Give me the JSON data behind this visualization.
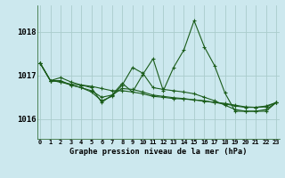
{
  "title": "Graphe pression niveau de la mer (hPa)",
  "bg_color": "#cce8ee",
  "grid_color": "#aacccc",
  "line_color": "#1a5c1a",
  "marker_color": "#1a5c1a",
  "x_labels": [
    "0",
    "1",
    "2",
    "3",
    "4",
    "5",
    "6",
    "7",
    "8",
    "9",
    "10",
    "11",
    "12",
    "13",
    "14",
    "15",
    "16",
    "17",
    "18",
    "19",
    "20",
    "21",
    "22",
    "23"
  ],
  "y_ticks": [
    1016,
    1017,
    1018
  ],
  "ylim": [
    1015.55,
    1018.6
  ],
  "xlim": [
    -0.3,
    23.3
  ],
  "series": [
    [
      1017.28,
      1016.88,
      1016.95,
      1016.85,
      1016.78,
      1016.72,
      1016.38,
      1016.55,
      1016.82,
      1016.62,
      1017.02,
      1017.38,
      1016.65,
      1017.18,
      1017.58,
      1018.25,
      1017.65,
      1017.22,
      1016.6,
      1016.18,
      1016.18,
      1016.18,
      1016.18,
      1016.38
    ],
    [
      1017.28,
      1016.88,
      1016.88,
      1016.78,
      1016.72,
      1016.62,
      1016.42,
      1016.52,
      1016.78,
      1017.18,
      1017.05,
      1016.72,
      1016.68,
      1016.65,
      1016.62,
      1016.58,
      1016.5,
      1016.42,
      1016.32,
      1016.22,
      1016.18,
      1016.18,
      1016.22,
      1016.38
    ],
    [
      1017.28,
      1016.88,
      1016.85,
      1016.8,
      1016.78,
      1016.75,
      1016.7,
      1016.65,
      1016.65,
      1016.62,
      1016.58,
      1016.52,
      1016.5,
      1016.47,
      1016.46,
      1016.44,
      1016.42,
      1016.38,
      1016.36,
      1016.32,
      1016.28,
      1016.27,
      1016.3,
      1016.38
    ],
    [
      1017.28,
      1016.88,
      1016.85,
      1016.78,
      1016.72,
      1016.65,
      1016.5,
      1016.55,
      1016.7,
      1016.68,
      1016.62,
      1016.55,
      1016.52,
      1016.49,
      1016.47,
      1016.44,
      1016.41,
      1016.38,
      1016.35,
      1016.3,
      1016.27,
      1016.27,
      1016.28,
      1016.38
    ]
  ]
}
